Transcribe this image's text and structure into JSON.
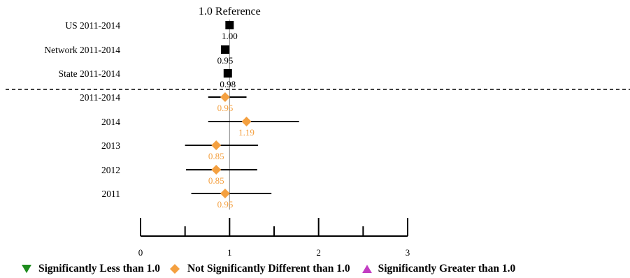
{
  "chart_data": {
    "type": "forest",
    "reference_label": "1.0 Reference",
    "reference_value": 1.0,
    "xlim": [
      0,
      3
    ],
    "x_ticks": [
      "0",
      "1",
      "2",
      "3"
    ],
    "rows": [
      {
        "label": "US 2011-2014",
        "value": 1.0,
        "value_label": "1.00",
        "ci": null,
        "marker": "square",
        "color": "#000000"
      },
      {
        "label": "Network 2011-2014",
        "value": 0.95,
        "value_label": "0.95",
        "ci": null,
        "marker": "square",
        "color": "#000000"
      },
      {
        "label": "State 2011-2014",
        "value": 0.98,
        "value_label": "0.98",
        "ci": null,
        "marker": "square",
        "color": "#000000"
      },
      {
        "label": "2011-2014",
        "value": 0.95,
        "value_label": "0.95",
        "ci": [
          0.76,
          1.19
        ],
        "marker": "diamond",
        "color": "#F4A040"
      },
      {
        "label": "2014",
        "value": 1.19,
        "value_label": "1.19",
        "ci": [
          0.76,
          1.78
        ],
        "marker": "diamond",
        "color": "#F4A040"
      },
      {
        "label": "2013",
        "value": 0.85,
        "value_label": "0.85",
        "ci": [
          0.5,
          1.32
        ],
        "marker": "diamond",
        "color": "#F4A040"
      },
      {
        "label": "2012",
        "value": 0.85,
        "value_label": "0.85",
        "ci": [
          0.51,
          1.31
        ],
        "marker": "diamond",
        "color": "#F4A040"
      },
      {
        "label": "2011",
        "value": 0.95,
        "value_label": "0.95",
        "ci": [
          0.57,
          1.47
        ],
        "marker": "diamond",
        "color": "#F4A040"
      }
    ]
  },
  "legend": [
    {
      "label": "Significantly Less than 1.0",
      "marker": "triangle-down",
      "color": "#1E8C1E"
    },
    {
      "label": "Not Significantly Different than 1.0",
      "marker": "diamond",
      "color": "#F4A040"
    },
    {
      "label": "Significantly Greater than 1.0",
      "marker": "triangle-up",
      "color": "#C23CC2"
    }
  ]
}
